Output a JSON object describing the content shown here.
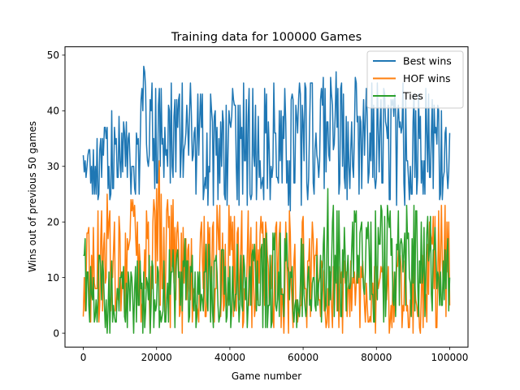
{
  "chart_data": {
    "type": "line",
    "title": "Training data for 100000 Games",
    "xlabel": "Game number",
    "ylabel": "Wins out of previous 50 games",
    "xlim": [
      -5000,
      105000
    ],
    "ylim": [
      -2.5,
      51.5
    ],
    "xticks": [
      0,
      20000,
      40000,
      60000,
      80000,
      100000
    ],
    "yticks": [
      0,
      10,
      20,
      30,
      40,
      50
    ],
    "grid": false,
    "legend_position": "top-right",
    "x_step": 250,
    "series": [
      {
        "name": "Best wins",
        "color": "#1f77b4",
        "envelope": {
          "x": [
            0,
            2000,
            5000,
            8000,
            12000,
            15000,
            15500,
            20000,
            25000,
            30000,
            35000,
            40000,
            45000,
            50000,
            55000,
            60000,
            64000,
            65000,
            68000,
            75000,
            85000,
            95000,
            100000
          ],
          "low": [
            25,
            23,
            22,
            24,
            23,
            22,
            28,
            26,
            25,
            24,
            22,
            23,
            22,
            24,
            22,
            23,
            24,
            22,
            24,
            22,
            23,
            22,
            25
          ],
          "high": [
            33,
            34,
            37,
            40,
            42,
            44,
            49,
            48,
            45,
            46,
            44,
            46,
            45,
            45,
            45,
            46,
            44,
            46,
            48,
            46,
            45,
            44,
            37
          ]
        }
      },
      {
        "name": "HOF wins",
        "color": "#ff7f0e",
        "envelope": {
          "x": [
            0,
            2000,
            5000,
            10000,
            13000,
            15000,
            16000,
            20000,
            25000,
            30000,
            35000,
            40000,
            45000,
            50000,
            55000,
            60000,
            64500,
            65000,
            70000,
            80000,
            90000,
            100000
          ],
          "low": [
            3,
            2,
            2,
            3,
            2,
            1,
            0,
            0,
            0,
            1,
            1,
            0,
            1,
            1,
            0,
            1,
            2,
            0,
            0,
            0,
            0,
            0
          ],
          "high": [
            20,
            22,
            25,
            24,
            25,
            23,
            18,
            33,
            26,
            18,
            24,
            24,
            22,
            20,
            22,
            21,
            20,
            14,
            13,
            14,
            15,
            26
          ]
        }
      },
      {
        "name": "Ties",
        "color": "#2ca02c",
        "envelope": {
          "x": [
            0,
            2000,
            5000,
            10000,
            15000,
            20000,
            25000,
            30000,
            35000,
            40000,
            45000,
            50000,
            55000,
            60000,
            64500,
            65000,
            70000,
            80000,
            90000,
            100000
          ],
          "low": [
            4,
            2,
            0,
            0,
            0,
            0,
            0,
            0,
            0,
            0,
            0,
            0,
            0,
            0,
            0,
            2,
            2,
            2,
            2,
            2
          ],
          "high": [
            18,
            17,
            14,
            13,
            13,
            15,
            17,
            18,
            16,
            17,
            17,
            19,
            18,
            17,
            15,
            27,
            23,
            23,
            23,
            21
          ]
        }
      }
    ]
  }
}
